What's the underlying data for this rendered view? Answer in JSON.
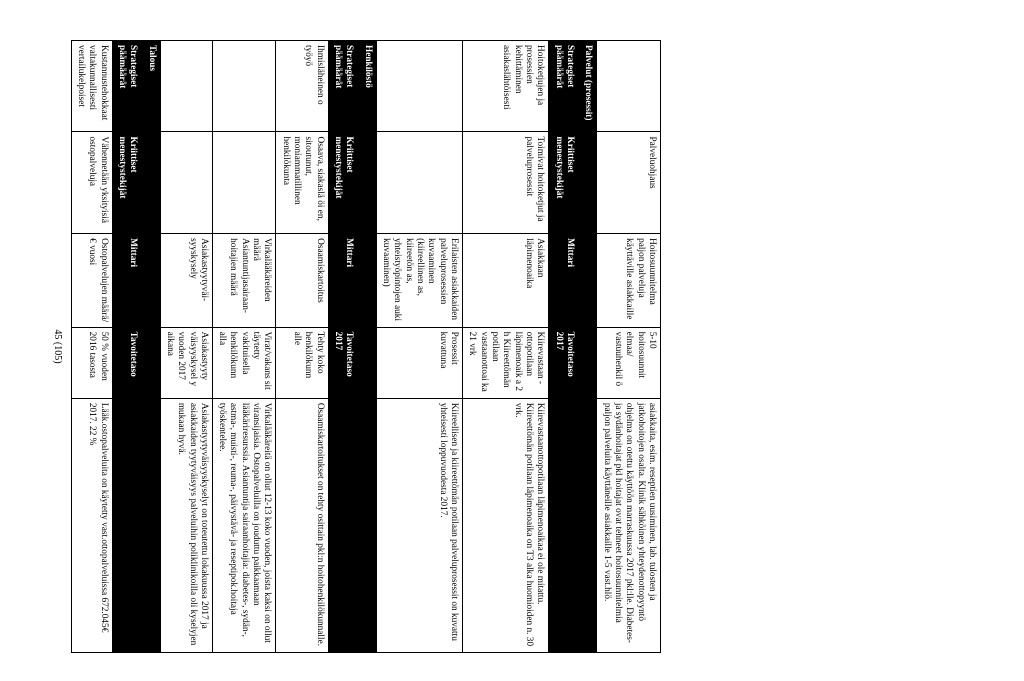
{
  "footer": "45 (105)",
  "col_widths": {
    "c1": 90,
    "c2": 100,
    "c3": 92,
    "c4": 70,
    "c5": 250
  },
  "colors": {
    "band_bg": "#000000",
    "band_fg": "#ffffff",
    "border": "#000000",
    "page_bg": "#ffffff",
    "text": "#000000"
  },
  "rows": [
    {
      "c1": "",
      "c2": "Palveluohjaus",
      "c3": "Hoitosuunnitelma paljon palveluja käyttäville asiakkaille",
      "c4": "5-10 hoitosuunnit elmaa/ vastuuhenkil ö",
      "c5": "asiakkaita, esim. reseptien uusiminen, lab. tulosten ja jatkohoitojen osalta. Klinik sähköinen yhteydenottopyyntö ohjelma on otettu käyttöön marraskuussa 2017 pkl:lle. Diabetes-ja sydänhoitajat pkl hoitajat ovat tehneet hoitosuunnitelmia paljon palveluita käyttäneille asiakkaille 1-5 vast.hlö."
    },
    {
      "band": true,
      "c1": "Palvelut (prosessit)"
    },
    {
      "header": true,
      "c1": "Strategiset päämäärät",
      "c2": "Kriittiset menestystekijät",
      "c3": "Mittari",
      "c4": "Tavoitetaso 2017",
      "c5": ""
    },
    {
      "c1": "Hoitoketjujen ja prosessien kehittäminen asiakaslähtöisesti",
      "c2": "Toimivat hoitoketjut ja palveluprosessit",
      "c3": "Asiakkaan läpimenoaika",
      "c4": "Kiirevastaan -ottopotilaan läpimenoaik a 2 h Kiireettömän potilaan vastaanottoai ka 21 vrk",
      "c5": "Kiirevastaanottopotilaan läpimenoaikaa ei ole mitattu. Kiireettömän potilaan läpimenoaika on T3 alka huomioiden n. 30 vrk."
    },
    {
      "c1": "",
      "c2": "",
      "c3": "Erilaisten asiakkaiden palveluprosessien kuvaaminen (kiireellinen as, kiireetön as, yhteistyöpintojen auki kuvaaminen)",
      "c4": "Prosessit kuvattuna",
      "c5": "Kiireellisen ja kiireettömän potilaan palveluprosessit on kuvattu yhteisesti loppuvuodesta 2017."
    },
    {
      "band": true,
      "c1": "Henkilöstö"
    },
    {
      "header": true,
      "c1": "Strategiset päämäärät",
      "c2": "Kriittiset menestystekijät",
      "c3": "Mittari",
      "c4": "Tavoitetaso 2017",
      "c5": ""
    },
    {
      "c1": "Ihmisläheinen o työyö",
      "c2": "Osaava, siakaslä öi en, sitoutunut, moniammatillinen henkilökunta",
      "c3": "Osaamiskartoitus",
      "c4": "Tehty koko henkilökunn alle",
      "c5": "Osaamiskartoitukset on tehty osittain pkl:n hoitohenkilökunnalle."
    },
    {
      "c1": "",
      "c2": "",
      "c3": "Virkalääkäreiden määrä Asiantuntijasairaan-hoitajien määrä",
      "c4": "Virat/vakans sit täytetty vakituisella henkilökunn alla",
      "c5": "Virkalääkäreitä on ollut 12-13 koko vuoden, joista kaksi on ollut viransijaisia. Ostopalveluilla on jouduttu paikkaamaan lääkäriresurssia. Asiantuntija sairaanhoitajia: diabetes-, sydän-, astma-, muisti-, reuma-, päivystävä- ja reseptipok.hoitaja työskentelee."
    },
    {
      "c1": "",
      "c2": "",
      "c3": "Asiakastyytyväi-syyskysely",
      "c4": "Asiakastyyty väisyyskysel y vuoden 2017 aikana",
      "c5": "Asiakastyytyväisyyskyselyt on toteutettu lokakuussa 2017 ja asiakkaiden tyytyväisyys palveluihin poliklinikoilla oli kyselyjen mukaan hyvä."
    },
    {
      "band": true,
      "c1": "Talous"
    },
    {
      "header": true,
      "c1": "Strategiset päämäärät",
      "c2": "Kriittiset menestystekijät",
      "c3": "Mittari",
      "c4": "Tavoitetaso",
      "c5": ""
    },
    {
      "c1": "Kustannustehokkaat valtakunnallisesti vertailukelpoiset",
      "c2": "Vähennetään yksityisiä ostopalveluja",
      "c3": "Ostopalvelujen määrä/€ vuosi",
      "c4": "50 % vuoden 2016 tasosta",
      "c5": "Lääk.ostopalveluita on käytetty vast.ottopalveluissa 672.045€ 2017. 22 %"
    }
  ]
}
